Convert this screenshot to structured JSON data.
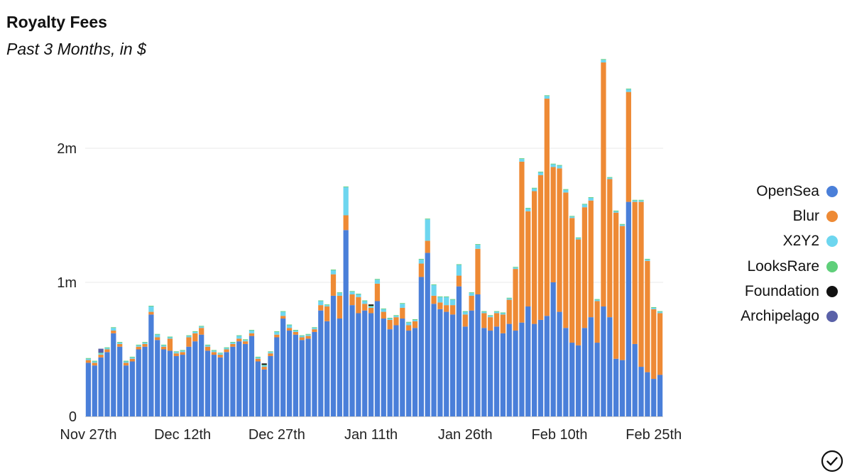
{
  "header": {
    "title": "Royalty Fees",
    "subtitle": "Past 3 Months, in $"
  },
  "colors": {
    "OpenSea": "#4a7fd9",
    "Blur": "#ee8a35",
    "X2Y2": "#6dd6ef",
    "LooksRare": "#5fcf7a",
    "Foundation": "#111111",
    "Archipelago": "#5a61a8",
    "grid": "#e8e8e8"
  },
  "icons": {
    "status": "check-circle-icon"
  },
  "chart_data": {
    "type": "bar",
    "stacked": true,
    "ylim": [
      0,
      2500000
    ],
    "yticks": [
      {
        "value": 0,
        "label": "0"
      },
      {
        "value": 1000000,
        "label": "1m"
      },
      {
        "value": 2000000,
        "label": "2m"
      }
    ],
    "xtick_labels": [
      {
        "index": 0,
        "label": "Nov 27th"
      },
      {
        "index": 15,
        "label": "Dec 12th"
      },
      {
        "index": 30,
        "label": "Dec 27th"
      },
      {
        "index": 45,
        "label": "Jan 11th"
      },
      {
        "index": 60,
        "label": "Jan 26th"
      },
      {
        "index": 75,
        "label": "Feb 10th"
      },
      {
        "index": 90,
        "label": "Feb 25th"
      }
    ],
    "start_date": "2022-11-27",
    "grid": true,
    "legend_position": "right",
    "series": [
      {
        "name": "OpenSea",
        "values": [
          400000,
          380000,
          440000,
          480000,
          620000,
          520000,
          380000,
          410000,
          500000,
          520000,
          760000,
          570000,
          500000,
          490000,
          450000,
          460000,
          520000,
          560000,
          610000,
          490000,
          460000,
          440000,
          480000,
          520000,
          560000,
          540000,
          600000,
          410000,
          350000,
          450000,
          590000,
          730000,
          640000,
          610000,
          570000,
          580000,
          630000,
          790000,
          710000,
          900000,
          730000,
          1390000,
          830000,
          770000,
          790000,
          770000,
          860000,
          730000,
          650000,
          680000,
          730000,
          640000,
          660000,
          1040000,
          1220000,
          840000,
          800000,
          780000,
          760000,
          970000,
          670000,
          790000,
          910000,
          660000,
          640000,
          670000,
          620000,
          690000,
          640000,
          700000,
          820000,
          690000,
          720000,
          750000,
          1000000,
          780000,
          660000,
          550000,
          530000,
          660000,
          740000,
          550000,
          820000,
          740000,
          430000,
          420000,
          1600000,
          540000,
          370000,
          330000,
          280000,
          310000
        ]
      },
      {
        "name": "Blur",
        "values": [
          20000,
          20000,
          20000,
          20000,
          20000,
          20000,
          20000,
          20000,
          20000,
          20000,
          20000,
          20000,
          20000,
          90000,
          20000,
          20000,
          70000,
          60000,
          50000,
          30000,
          20000,
          20000,
          20000,
          20000,
          20000,
          20000,
          20000,
          20000,
          20000,
          20000,
          20000,
          20000,
          20000,
          20000,
          20000,
          20000,
          20000,
          40000,
          110000,
          160000,
          170000,
          110000,
          80000,
          120000,
          50000,
          40000,
          130000,
          50000,
          70000,
          60000,
          80000,
          40000,
          50000,
          100000,
          90000,
          60000,
          50000,
          50000,
          70000,
          80000,
          90000,
          110000,
          340000,
          110000,
          100000,
          100000,
          140000,
          180000,
          460000,
          1200000,
          710000,
          990000,
          1080000,
          1620000,
          860000,
          1070000,
          1010000,
          930000,
          790000,
          900000,
          870000,
          310000,
          1820000,
          1030000,
          1090000,
          1000000,
          820000,
          1060000,
          1230000,
          830000,
          520000,
          460000
        ]
      },
      {
        "name": "X2Y2",
        "values": [
          10000,
          10000,
          10000,
          10000,
          20000,
          10000,
          10000,
          10000,
          10000,
          10000,
          40000,
          20000,
          10000,
          10000,
          10000,
          10000,
          10000,
          10000,
          10000,
          10000,
          10000,
          10000,
          10000,
          10000,
          20000,
          10000,
          20000,
          10000,
          10000,
          10000,
          20000,
          30000,
          20000,
          10000,
          10000,
          10000,
          10000,
          30000,
          10000,
          30000,
          20000,
          210000,
          20000,
          20000,
          20000,
          10000,
          30000,
          20000,
          10000,
          10000,
          30000,
          20000,
          10000,
          30000,
          160000,
          80000,
          40000,
          60000,
          40000,
          80000,
          20000,
          20000,
          30000,
          10000,
          10000,
          10000,
          10000,
          10000,
          10000,
          20000,
          20000,
          20000,
          20000,
          20000,
          20000,
          20000,
          20000,
          10000,
          10000,
          20000,
          20000,
          10000,
          20000,
          10000,
          10000,
          10000,
          20000,
          10000,
          10000,
          10000,
          10000,
          10000
        ]
      },
      {
        "name": "LooksRare",
        "values": [
          5000,
          5000,
          5000,
          5000,
          5000,
          5000,
          5000,
          5000,
          5000,
          5000,
          5000,
          5000,
          5000,
          5000,
          5000,
          5000,
          5000,
          5000,
          5000,
          5000,
          5000,
          5000,
          5000,
          5000,
          5000,
          5000,
          5000,
          5000,
          5000,
          5000,
          5000,
          5000,
          5000,
          5000,
          5000,
          5000,
          5000,
          5000,
          5000,
          5000,
          5000,
          5000,
          5000,
          5000,
          5000,
          5000,
          5000,
          5000,
          5000,
          5000,
          5000,
          5000,
          5000,
          5000,
          5000,
          5000,
          5000,
          5000,
          5000,
          5000,
          5000,
          5000,
          5000,
          5000,
          5000,
          5000,
          5000,
          5000,
          5000,
          5000,
          5000,
          5000,
          5000,
          5000,
          5000,
          5000,
          5000,
          5000,
          5000,
          5000,
          5000,
          5000,
          5000,
          5000,
          5000,
          5000,
          5000,
          5000,
          5000,
          5000,
          5000,
          5000
        ]
      },
      {
        "name": "Foundation",
        "values": [
          0,
          0,
          0,
          0,
          0,
          0,
          0,
          0,
          0,
          0,
          0,
          0,
          0,
          0,
          0,
          0,
          0,
          0,
          0,
          0,
          0,
          0,
          0,
          0,
          0,
          0,
          0,
          0,
          10000,
          0,
          0,
          0,
          0,
          0,
          0,
          0,
          0,
          0,
          0,
          0,
          0,
          0,
          0,
          0,
          0,
          10000,
          0,
          0,
          0,
          0,
          0,
          0,
          0,
          0,
          0,
          0,
          0,
          0,
          0,
          0,
          0,
          0,
          0,
          0,
          0,
          0,
          0,
          0,
          0,
          0,
          0,
          0,
          0,
          0,
          0,
          0,
          0,
          0,
          0,
          0,
          0,
          0,
          0,
          0,
          0,
          0,
          0,
          0,
          0,
          0,
          0,
          0
        ]
      },
      {
        "name": "Archipelago",
        "values": [
          0,
          0,
          30000,
          0,
          0,
          0,
          0,
          0,
          0,
          0,
          0,
          0,
          0,
          0,
          0,
          0,
          0,
          0,
          0,
          0,
          0,
          0,
          0,
          0,
          0,
          0,
          0,
          0,
          0,
          0,
          0,
          0,
          0,
          0,
          0,
          0,
          0,
          0,
          0,
          0,
          0,
          0,
          0,
          0,
          0,
          0,
          0,
          0,
          0,
          0,
          0,
          0,
          0,
          0,
          0,
          0,
          0,
          0,
          0,
          0,
          0,
          0,
          0,
          0,
          0,
          0,
          0,
          0,
          0,
          0,
          0,
          0,
          0,
          0,
          0,
          0,
          0,
          0,
          0,
          0,
          0,
          0,
          0,
          0,
          0,
          0,
          0,
          0,
          0,
          0,
          0,
          0
        ]
      }
    ]
  }
}
